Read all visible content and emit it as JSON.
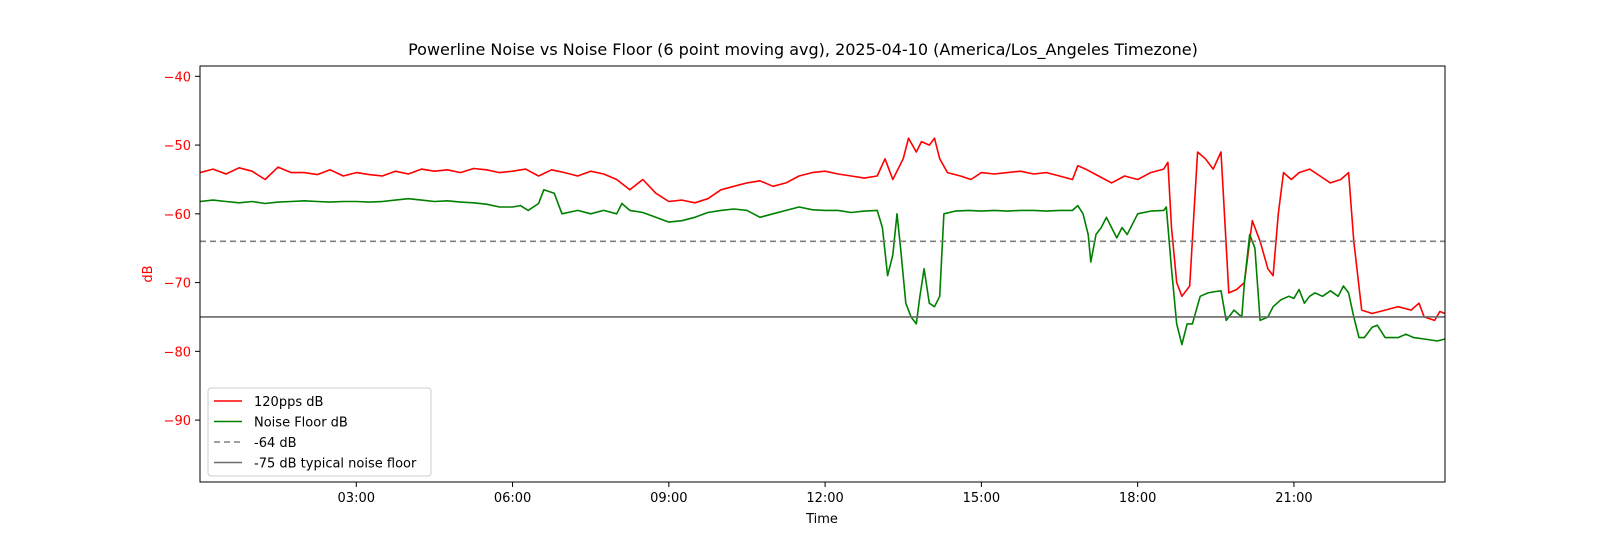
{
  "chart_data": {
    "type": "line",
    "title": "Powerline Noise vs Noise Floor (6 point moving avg), 2025-04-10 (America/Los_Angeles Timezone)",
    "xlabel": "Time",
    "ylabel": "dB",
    "ylabel_color": "#ff0000",
    "x_range_hours": [
      0,
      23.9
    ],
    "ylim": [
      -99,
      -38.5
    ],
    "x_ticks": [
      "03:00",
      "06:00",
      "09:00",
      "12:00",
      "15:00",
      "18:00",
      "21:00"
    ],
    "x_tick_hours": [
      3,
      6,
      9,
      12,
      15,
      18,
      21
    ],
    "y_ticks": [
      -40,
      -50,
      -60,
      -70,
      -80,
      -90
    ],
    "grid": false,
    "legend_position": "lower-left",
    "series": [
      {
        "name": "120pps dB",
        "color": "#ff0000",
        "style": "solid",
        "points": [
          [
            0.0,
            -54
          ],
          [
            0.25,
            -53.5
          ],
          [
            0.5,
            -54.2
          ],
          [
            0.75,
            -53.3
          ],
          [
            1.0,
            -53.8
          ],
          [
            1.25,
            -55
          ],
          [
            1.5,
            -53.2
          ],
          [
            1.75,
            -54
          ],
          [
            2.0,
            -54
          ],
          [
            2.25,
            -54.3
          ],
          [
            2.5,
            -53.6
          ],
          [
            2.75,
            -54.5
          ],
          [
            3.0,
            -54
          ],
          [
            3.25,
            -54.3
          ],
          [
            3.5,
            -54.5
          ],
          [
            3.75,
            -53.8
          ],
          [
            4.0,
            -54.2
          ],
          [
            4.25,
            -53.5
          ],
          [
            4.5,
            -53.8
          ],
          [
            4.75,
            -53.6
          ],
          [
            5.0,
            -54
          ],
          [
            5.25,
            -53.4
          ],
          [
            5.5,
            -53.6
          ],
          [
            5.75,
            -54
          ],
          [
            6.0,
            -53.8
          ],
          [
            6.25,
            -53.5
          ],
          [
            6.5,
            -54.5
          ],
          [
            6.75,
            -53.6
          ],
          [
            7.0,
            -54
          ],
          [
            7.25,
            -54.5
          ],
          [
            7.5,
            -53.8
          ],
          [
            7.75,
            -54.2
          ],
          [
            8.0,
            -55
          ],
          [
            8.25,
            -56.5
          ],
          [
            8.5,
            -55
          ],
          [
            8.75,
            -57
          ],
          [
            9.0,
            -58.2
          ],
          [
            9.25,
            -58
          ],
          [
            9.5,
            -58.4
          ],
          [
            9.75,
            -57.8
          ],
          [
            10.0,
            -56.5
          ],
          [
            10.25,
            -56
          ],
          [
            10.5,
            -55.5
          ],
          [
            10.75,
            -55.2
          ],
          [
            11.0,
            -56
          ],
          [
            11.25,
            -55.5
          ],
          [
            11.5,
            -54.5
          ],
          [
            11.75,
            -54
          ],
          [
            12.0,
            -53.8
          ],
          [
            12.25,
            -54.2
          ],
          [
            12.5,
            -54.5
          ],
          [
            12.75,
            -54.8
          ],
          [
            13.0,
            -54.5
          ],
          [
            13.15,
            -52
          ],
          [
            13.3,
            -55
          ],
          [
            13.5,
            -52
          ],
          [
            13.6,
            -49
          ],
          [
            13.75,
            -51
          ],
          [
            13.85,
            -49.5
          ],
          [
            14.0,
            -50
          ],
          [
            14.1,
            -49
          ],
          [
            14.2,
            -52
          ],
          [
            14.35,
            -54
          ],
          [
            14.6,
            -54.5
          ],
          [
            14.8,
            -55
          ],
          [
            15.0,
            -54
          ],
          [
            15.25,
            -54.2
          ],
          [
            15.5,
            -54
          ],
          [
            15.75,
            -53.8
          ],
          [
            16.0,
            -54.2
          ],
          [
            16.25,
            -54
          ],
          [
            16.5,
            -54.5
          ],
          [
            16.75,
            -55
          ],
          [
            16.85,
            -53
          ],
          [
            17.0,
            -53.5
          ],
          [
            17.25,
            -54.5
          ],
          [
            17.5,
            -55.5
          ],
          [
            17.75,
            -54.5
          ],
          [
            18.0,
            -55
          ],
          [
            18.25,
            -54
          ],
          [
            18.5,
            -53.5
          ],
          [
            18.58,
            -52.5
          ],
          [
            18.65,
            -62
          ],
          [
            18.75,
            -70
          ],
          [
            18.85,
            -72
          ],
          [
            19.0,
            -70.5
          ],
          [
            19.08,
            -60
          ],
          [
            19.15,
            -51
          ],
          [
            19.3,
            -52
          ],
          [
            19.45,
            -53.5
          ],
          [
            19.6,
            -51
          ],
          [
            19.68,
            -62
          ],
          [
            19.75,
            -71.5
          ],
          [
            19.9,
            -71
          ],
          [
            20.05,
            -70
          ],
          [
            20.2,
            -61
          ],
          [
            20.35,
            -64
          ],
          [
            20.5,
            -68
          ],
          [
            20.6,
            -69
          ],
          [
            20.7,
            -60
          ],
          [
            20.8,
            -54
          ],
          [
            20.95,
            -55
          ],
          [
            21.1,
            -54
          ],
          [
            21.3,
            -53.5
          ],
          [
            21.5,
            -54.5
          ],
          [
            21.7,
            -55.5
          ],
          [
            21.9,
            -55
          ],
          [
            22.05,
            -54
          ],
          [
            22.15,
            -64
          ],
          [
            22.3,
            -74
          ],
          [
            22.5,
            -74.5
          ],
          [
            22.75,
            -74
          ],
          [
            23.0,
            -73.5
          ],
          [
            23.25,
            -74
          ],
          [
            23.4,
            -73
          ],
          [
            23.5,
            -75
          ],
          [
            23.7,
            -75.5
          ],
          [
            23.8,
            -74.2
          ],
          [
            23.9,
            -74.5
          ]
        ]
      },
      {
        "name": "Noise Floor dB",
        "color": "#008000",
        "style": "solid",
        "points": [
          [
            0.0,
            -58.2
          ],
          [
            0.25,
            -58
          ],
          [
            0.5,
            -58.2
          ],
          [
            0.75,
            -58.4
          ],
          [
            1.0,
            -58.2
          ],
          [
            1.25,
            -58.5
          ],
          [
            1.5,
            -58.3
          ],
          [
            1.75,
            -58.2
          ],
          [
            2.0,
            -58.1
          ],
          [
            2.25,
            -58.2
          ],
          [
            2.5,
            -58.3
          ],
          [
            2.75,
            -58.2
          ],
          [
            3.0,
            -58.2
          ],
          [
            3.25,
            -58.3
          ],
          [
            3.5,
            -58.2
          ],
          [
            3.75,
            -58
          ],
          [
            4.0,
            -57.8
          ],
          [
            4.25,
            -58
          ],
          [
            4.5,
            -58.2
          ],
          [
            4.75,
            -58.1
          ],
          [
            5.0,
            -58.3
          ],
          [
            5.25,
            -58.4
          ],
          [
            5.5,
            -58.6
          ],
          [
            5.75,
            -59
          ],
          [
            6.0,
            -59
          ],
          [
            6.15,
            -58.8
          ],
          [
            6.3,
            -59.5
          ],
          [
            6.5,
            -58.5
          ],
          [
            6.6,
            -56.5
          ],
          [
            6.8,
            -57
          ],
          [
            6.95,
            -60
          ],
          [
            7.25,
            -59.5
          ],
          [
            7.5,
            -60
          ],
          [
            7.75,
            -59.5
          ],
          [
            8.0,
            -60
          ],
          [
            8.1,
            -58.5
          ],
          [
            8.25,
            -59.5
          ],
          [
            8.5,
            -59.8
          ],
          [
            8.75,
            -60.5
          ],
          [
            9.0,
            -61.2
          ],
          [
            9.25,
            -61
          ],
          [
            9.5,
            -60.5
          ],
          [
            9.75,
            -59.8
          ],
          [
            10.0,
            -59.5
          ],
          [
            10.25,
            -59.3
          ],
          [
            10.5,
            -59.5
          ],
          [
            10.75,
            -60.5
          ],
          [
            11.0,
            -60
          ],
          [
            11.25,
            -59.5
          ],
          [
            11.5,
            -59
          ],
          [
            11.75,
            -59.4
          ],
          [
            12.0,
            -59.5
          ],
          [
            12.25,
            -59.5
          ],
          [
            12.5,
            -59.8
          ],
          [
            12.75,
            -59.6
          ],
          [
            13.0,
            -59.5
          ],
          [
            13.1,
            -62
          ],
          [
            13.2,
            -69
          ],
          [
            13.3,
            -66
          ],
          [
            13.38,
            -60
          ],
          [
            13.45,
            -65
          ],
          [
            13.55,
            -73
          ],
          [
            13.65,
            -75
          ],
          [
            13.75,
            -76
          ],
          [
            13.82,
            -72
          ],
          [
            13.9,
            -68
          ],
          [
            14.0,
            -73
          ],
          [
            14.1,
            -73.5
          ],
          [
            14.2,
            -72
          ],
          [
            14.28,
            -60
          ],
          [
            14.5,
            -59.6
          ],
          [
            14.75,
            -59.5
          ],
          [
            15.0,
            -59.6
          ],
          [
            15.25,
            -59.5
          ],
          [
            15.5,
            -59.6
          ],
          [
            15.75,
            -59.5
          ],
          [
            16.0,
            -59.5
          ],
          [
            16.25,
            -59.6
          ],
          [
            16.5,
            -59.5
          ],
          [
            16.75,
            -59.5
          ],
          [
            16.85,
            -58.8
          ],
          [
            16.95,
            -60
          ],
          [
            17.05,
            -63
          ],
          [
            17.1,
            -67
          ],
          [
            17.2,
            -63
          ],
          [
            17.3,
            -62
          ],
          [
            17.4,
            -60.5
          ],
          [
            17.5,
            -62
          ],
          [
            17.6,
            -63.5
          ],
          [
            17.7,
            -62
          ],
          [
            17.8,
            -63
          ],
          [
            18.0,
            -60
          ],
          [
            18.25,
            -59.6
          ],
          [
            18.5,
            -59.5
          ],
          [
            18.55,
            -59
          ],
          [
            18.65,
            -68
          ],
          [
            18.75,
            -76
          ],
          [
            18.85,
            -79
          ],
          [
            18.95,
            -76
          ],
          [
            19.05,
            -76
          ],
          [
            19.2,
            -72
          ],
          [
            19.35,
            -71.5
          ],
          [
            19.5,
            -71.3
          ],
          [
            19.6,
            -71.2
          ],
          [
            19.7,
            -75.5
          ],
          [
            19.85,
            -74
          ],
          [
            20.0,
            -75
          ],
          [
            20.05,
            -70
          ],
          [
            20.15,
            -63
          ],
          [
            20.25,
            -65
          ],
          [
            20.35,
            -75.5
          ],
          [
            20.5,
            -75
          ],
          [
            20.6,
            -73.5
          ],
          [
            20.75,
            -72.5
          ],
          [
            20.9,
            -72
          ],
          [
            21.0,
            -72.3
          ],
          [
            21.1,
            -71
          ],
          [
            21.2,
            -73
          ],
          [
            21.3,
            -72
          ],
          [
            21.4,
            -71.5
          ],
          [
            21.55,
            -72
          ],
          [
            21.7,
            -71.2
          ],
          [
            21.85,
            -72
          ],
          [
            21.95,
            -70.5
          ],
          [
            22.05,
            -71.5
          ],
          [
            22.15,
            -75
          ],
          [
            22.25,
            -78
          ],
          [
            22.35,
            -78
          ],
          [
            22.5,
            -76.5
          ],
          [
            22.6,
            -76.2
          ],
          [
            22.75,
            -78
          ],
          [
            23.0,
            -78
          ],
          [
            23.15,
            -77.5
          ],
          [
            23.3,
            -78
          ],
          [
            23.5,
            -78.2
          ],
          [
            23.75,
            -78.5
          ],
          [
            23.9,
            -78.2
          ]
        ]
      },
      {
        "name": "-64 dB",
        "color": "#808080",
        "style": "dashed",
        "constant_y": -64
      },
      {
        "name": "-75 dB typical noise floor",
        "color": "#696969",
        "style": "solid",
        "constant_y": -75
      }
    ]
  }
}
